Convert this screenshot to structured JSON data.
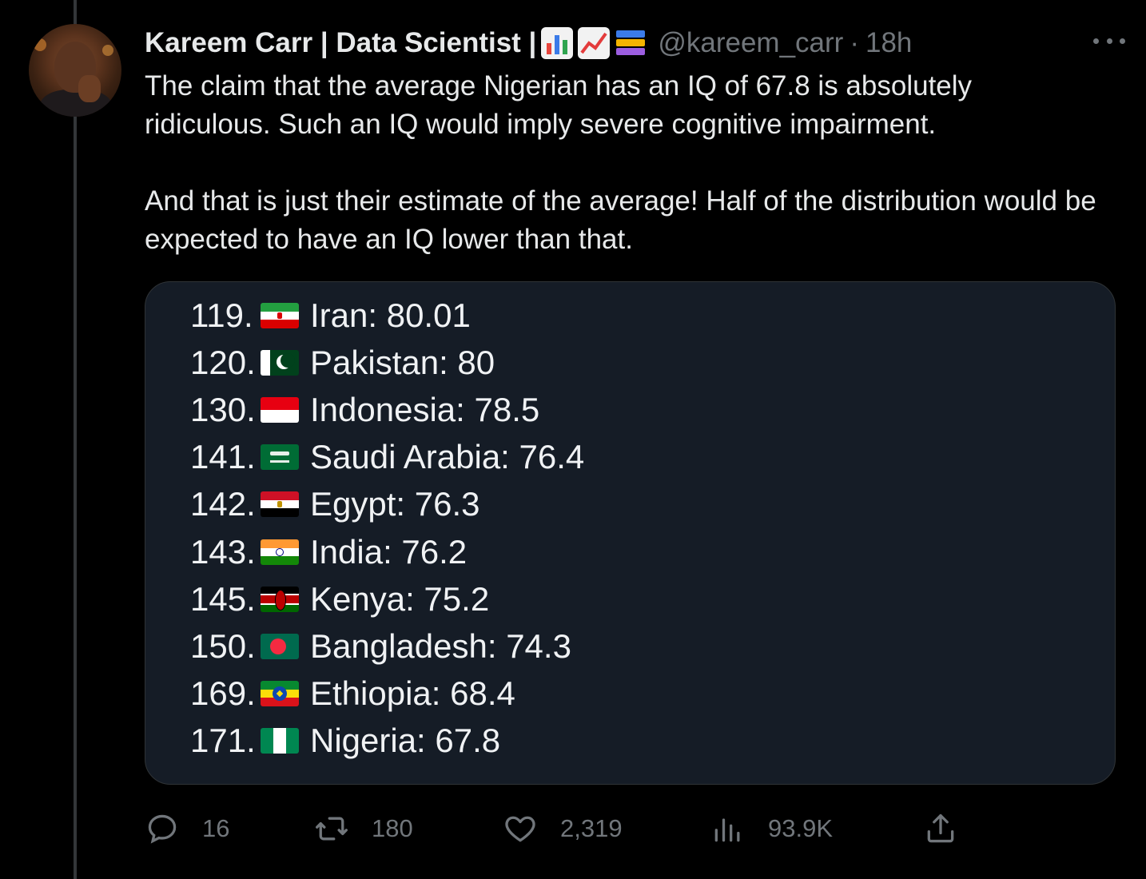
{
  "tweet": {
    "author_name": "Kareem Carr | Data Scientist |",
    "author_emoji_icons": [
      "bar-chart-icon",
      "chart-increasing-icon",
      "books-icon"
    ],
    "handle": "@kareem_carr",
    "separator": "·",
    "time": "18h",
    "paragraphs": [
      "The claim that the average Nigerian has an IQ of 67.8 is absolutely ridiculous. Such an IQ would imply severe cognitive impairment.",
      "And that is just their estimate of the average! Half of the distribution would be expected to have an IQ lower than that."
    ]
  },
  "ranking": [
    {
      "rank": "119.",
      "country": "Iran: 80.01",
      "flag": "iran-flag-icon"
    },
    {
      "rank": "120.",
      "country": "Pakistan: 80",
      "flag": "pakistan-flag-icon"
    },
    {
      "rank": "130.",
      "country": "Indonesia: 78.5",
      "flag": "indonesia-flag-icon"
    },
    {
      "rank": "141.",
      "country": "Saudi Arabia: 76.4",
      "flag": "saudi-arabia-flag-icon"
    },
    {
      "rank": "142.",
      "country": "Egypt: 76.3",
      "flag": "egypt-flag-icon"
    },
    {
      "rank": "143.",
      "country": "India: 76.2",
      "flag": "india-flag-icon"
    },
    {
      "rank": "145.",
      "country": "Kenya: 75.2",
      "flag": "kenya-flag-icon"
    },
    {
      "rank": "150.",
      "country": "Bangladesh: 74.3",
      "flag": "bangladesh-flag-icon"
    },
    {
      "rank": "169.",
      "country": "Ethiopia: 68.4",
      "flag": "ethiopia-flag-icon"
    },
    {
      "rank": "171.",
      "country": "Nigeria: 67.8",
      "flag": "nigeria-flag-icon"
    }
  ],
  "actions": {
    "replies": "16",
    "reposts": "180",
    "likes": "2,319",
    "views": "93.9K"
  },
  "colors": {
    "background": "#000000",
    "text": "#e7e9ea",
    "muted": "#71767b",
    "card": "#151c26"
  }
}
